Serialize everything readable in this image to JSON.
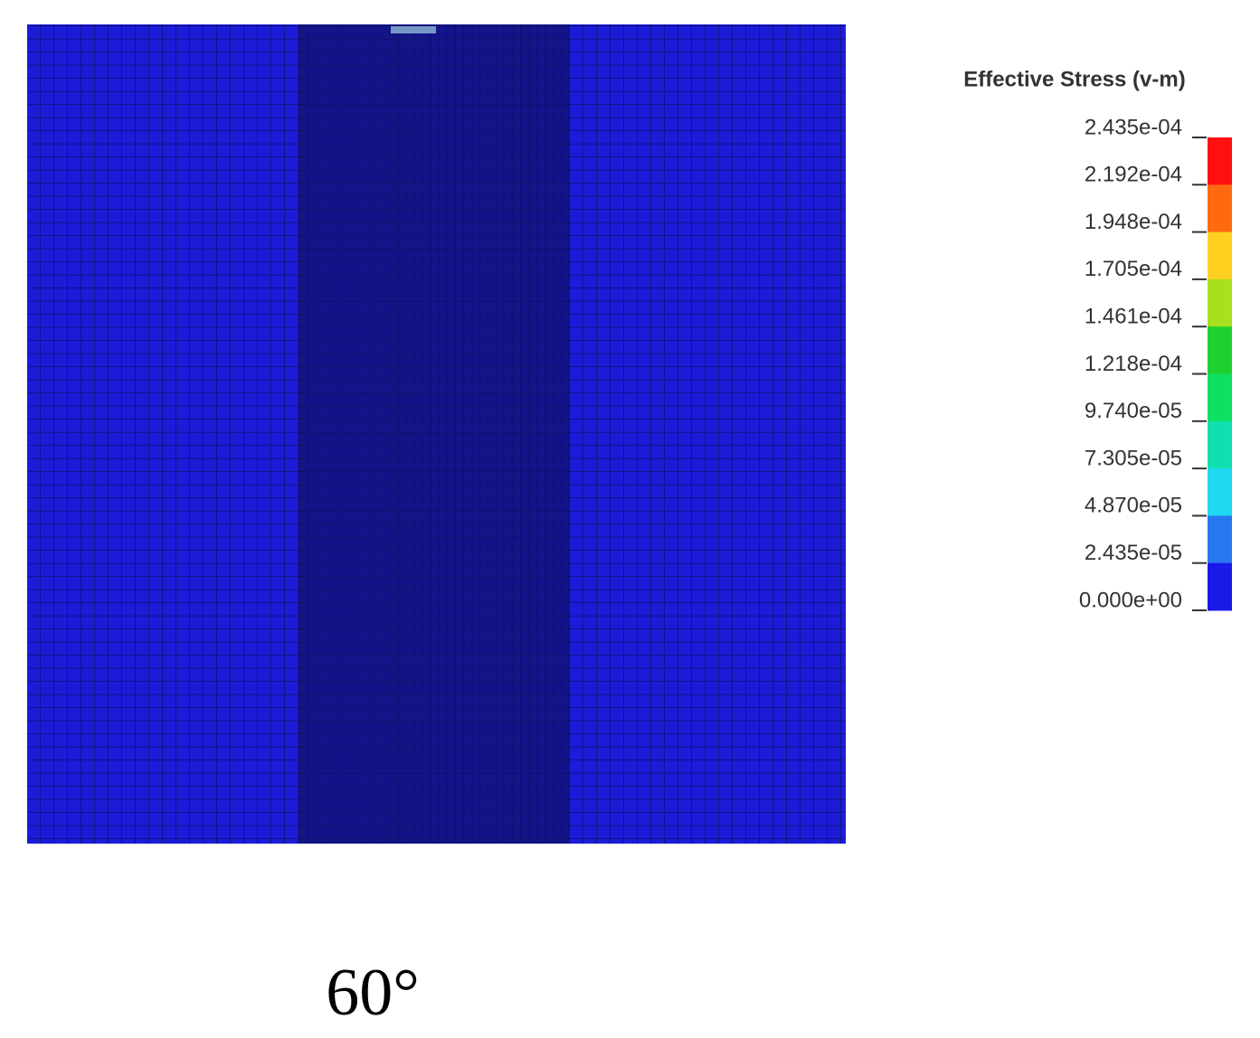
{
  "legend": {
    "title": "Effective Stress (v-m)",
    "labels": [
      "2.435e-04",
      "2.192e-04",
      "1.948e-04",
      "1.705e-04",
      "1.461e-04",
      "1.218e-04",
      "9.740e-05",
      "7.305e-05",
      "4.870e-05",
      "2.435e-05",
      "0.000e+00"
    ],
    "colors": [
      "#ff1010",
      "#ff6a10",
      "#ffd020",
      "#a8e020",
      "#20d030",
      "#10e060",
      "#10e0b0",
      "#20d8f0",
      "#2878f0",
      "#1a1ae8"
    ]
  },
  "caption": "60°"
}
